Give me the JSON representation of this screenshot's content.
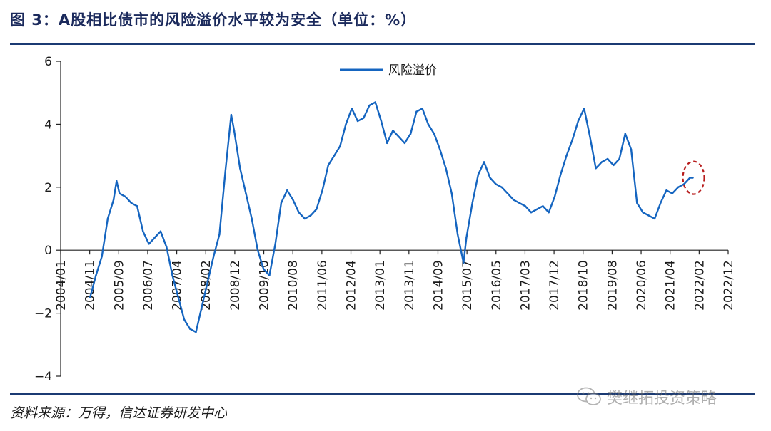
{
  "header": {
    "title": "图 3：A股相比债市的风险溢价水平较为安全（单位：%）"
  },
  "footer": {
    "source": "资料来源：万得，信达证券研发中心",
    "watermark": "樊继拓投资策略",
    "watermark_icon": "wechat-icon"
  },
  "colors": {
    "series": "#1565c0",
    "rule": "#1b3a73",
    "title": "#1b2a5c",
    "highlight": "#b71c1c"
  },
  "chart_data": {
    "type": "line",
    "title": "",
    "xlabel": "",
    "ylabel": "",
    "ylim": [
      -4,
      6
    ],
    "yticks": [
      -4,
      -2,
      0,
      2,
      4,
      6
    ],
    "ytick_labels": [
      "−4",
      "−2",
      "0",
      "2",
      "4",
      "6"
    ],
    "xlim": [
      "2004-01",
      "2022-12"
    ],
    "xtick_labels": [
      "2004/01",
      "2004/11",
      "2005/09",
      "2006/07",
      "2007/04",
      "2008/02",
      "2008/12",
      "2009/10",
      "2010/08",
      "2011/06",
      "2012/04",
      "2013/01",
      "2013/11",
      "2014/09",
      "2015/07",
      "2016/05",
      "2017/03",
      "2017/12",
      "2018/10",
      "2019/08",
      "2020/06",
      "2021/04",
      "2022/02",
      "2022/12"
    ],
    "legend": {
      "position": "top-center",
      "entries": [
        "风险溢价"
      ]
    },
    "annotation": {
      "type": "dashed-ellipse",
      "near": "2021-12"
    },
    "series": [
      {
        "name": "风险溢价",
        "x": [
          "2004-11",
          "2005-01",
          "2005-03",
          "2005-05",
          "2005-07",
          "2005-08",
          "2005-09",
          "2005-11",
          "2006-01",
          "2006-03",
          "2006-05",
          "2006-07",
          "2006-09",
          "2006-11",
          "2007-01",
          "2007-03",
          "2007-05",
          "2007-07",
          "2007-09",
          "2007-11",
          "2008-01",
          "2008-03",
          "2008-05",
          "2008-07",
          "2008-09",
          "2008-11",
          "2008-12",
          "2009-02",
          "2009-04",
          "2009-06",
          "2009-08",
          "2009-10",
          "2009-12",
          "2010-02",
          "2010-04",
          "2010-06",
          "2010-08",
          "2010-10",
          "2010-12",
          "2011-02",
          "2011-04",
          "2011-06",
          "2011-08",
          "2011-10",
          "2011-12",
          "2012-02",
          "2012-04",
          "2012-06",
          "2012-08",
          "2012-10",
          "2012-12",
          "2013-02",
          "2013-04",
          "2013-06",
          "2013-08",
          "2013-10",
          "2013-12",
          "2014-02",
          "2014-04",
          "2014-06",
          "2014-08",
          "2014-10",
          "2014-12",
          "2015-02",
          "2015-04",
          "2015-06",
          "2015-07",
          "2015-09",
          "2015-11",
          "2016-01",
          "2016-03",
          "2016-05",
          "2016-07",
          "2016-09",
          "2016-11",
          "2017-01",
          "2017-03",
          "2017-05",
          "2017-07",
          "2017-09",
          "2017-11",
          "2018-01",
          "2018-03",
          "2018-05",
          "2018-07",
          "2018-09",
          "2018-11",
          "2019-01",
          "2019-03",
          "2019-05",
          "2019-07",
          "2019-09",
          "2019-11",
          "2020-01",
          "2020-03",
          "2020-05",
          "2020-07",
          "2020-09",
          "2020-11",
          "2021-01",
          "2021-03",
          "2021-05",
          "2021-07",
          "2021-09",
          "2021-11",
          "2021-12"
        ],
        "values": [
          -1.5,
          -0.8,
          -0.2,
          1.0,
          1.6,
          2.2,
          1.8,
          1.7,
          1.5,
          1.4,
          0.6,
          0.2,
          0.4,
          0.6,
          0.1,
          -0.8,
          -1.5,
          -2.2,
          -2.5,
          -2.6,
          -1.8,
          -1.0,
          -0.2,
          0.5,
          2.5,
          4.3,
          3.8,
          2.6,
          1.8,
          1.0,
          0.0,
          -0.6,
          -0.8,
          0.2,
          1.5,
          1.9,
          1.6,
          1.2,
          1.0,
          1.1,
          1.3,
          1.9,
          2.7,
          3.0,
          3.3,
          4.0,
          4.5,
          4.1,
          4.2,
          4.6,
          4.7,
          4.1,
          3.4,
          3.8,
          3.6,
          3.4,
          3.7,
          4.4,
          4.5,
          4.0,
          3.7,
          3.2,
          2.6,
          1.8,
          0.5,
          -0.4,
          0.4,
          1.5,
          2.4,
          2.8,
          2.3,
          2.1,
          2.0,
          1.8,
          1.6,
          1.5,
          1.4,
          1.2,
          1.3,
          1.4,
          1.2,
          1.7,
          2.4,
          3.0,
          3.5,
          4.1,
          4.5,
          3.6,
          2.6,
          2.8,
          2.9,
          2.7,
          2.9,
          3.7,
          3.2,
          1.5,
          1.2,
          1.1,
          1.0,
          1.5,
          1.9,
          1.8,
          2.0,
          2.1,
          2.3,
          2.3
        ]
      }
    ]
  }
}
